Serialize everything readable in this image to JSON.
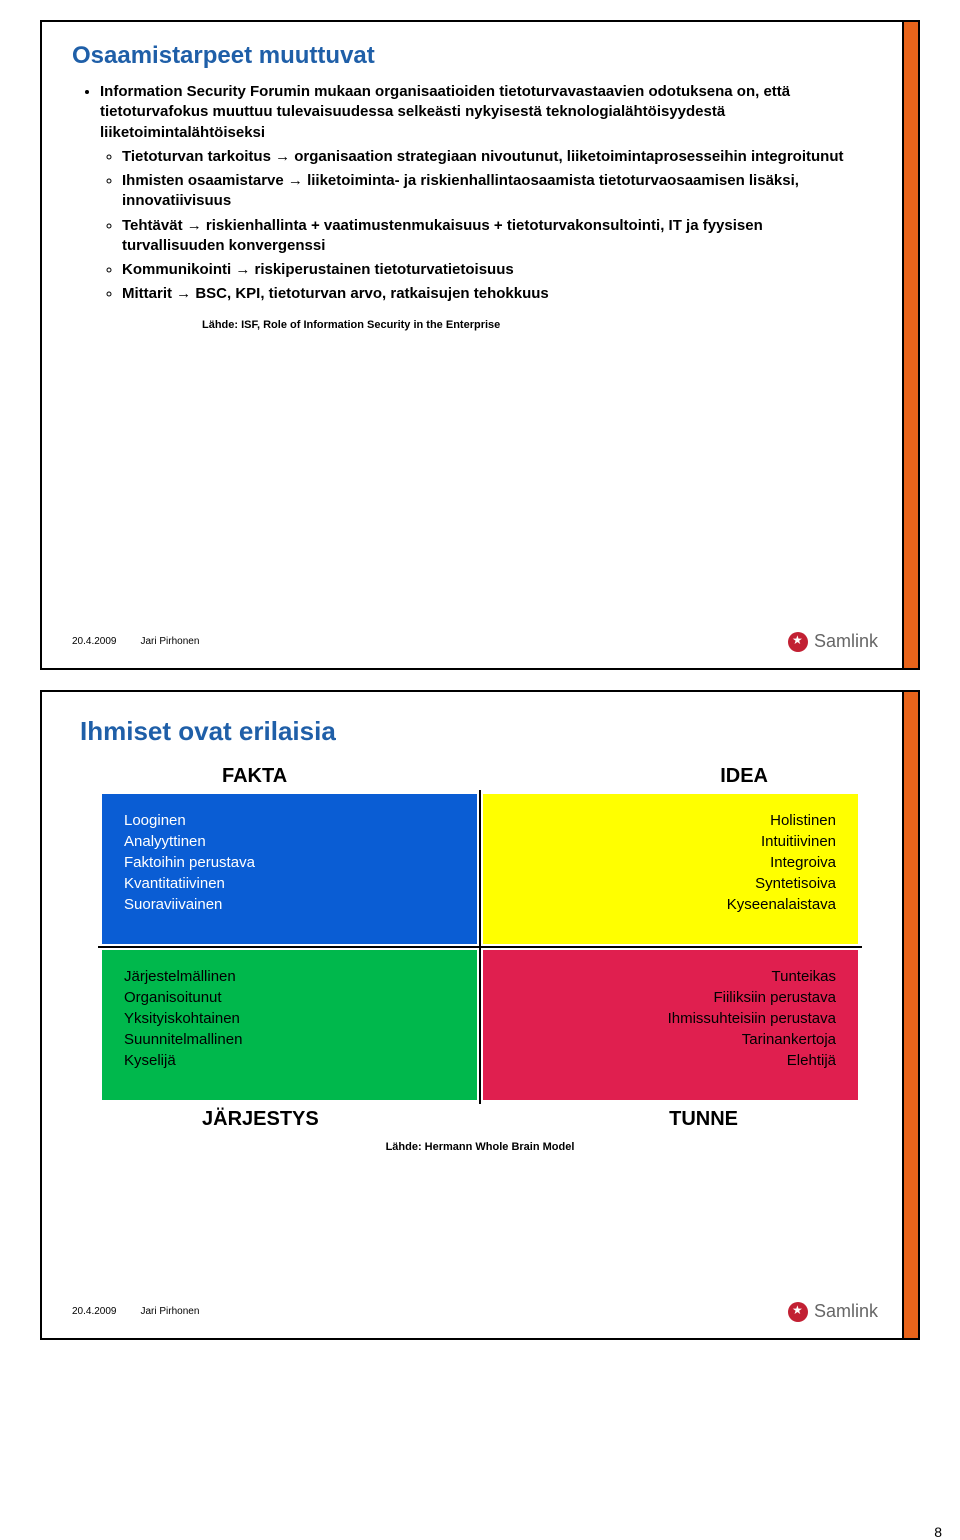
{
  "colors": {
    "title": "#1f5fa8",
    "accent_bar": "#e8641b",
    "text": "#000000",
    "samlink_red": "#c22033",
    "quad_blue": "#0a5dd4",
    "quad_yellow": "#ffff00",
    "quad_green": "#00b84c",
    "quad_red": "#e01f4f"
  },
  "slide1": {
    "title": "Osaamistarpeet muuttuvat",
    "bullets": {
      "b0": "Information Security Forumin mukaan organisaatioiden tietoturvavastaavien odotuksena on, että tietoturvafokus muuttuu tulevaisuudessa selkeästi nykyisestä teknologialähtöisyydestä liiketoimintalähtöiseksi",
      "s0": "Tietoturvan tarkoitus → organisaation strategiaan nivoutunut, liiketoimintaprosesseihin integroitunut",
      "s1": "Ihmisten osaamistarve → liiketoiminta- ja riskienhallintaosaamista tietoturvaosaamisen lisäksi, innovatiivisuus",
      "s2": "Tehtävät → riskienhallinta + vaatimustenmukaisuus + tietoturvakonsultointi, IT ja fyysisen turvallisuuden konvergenssi",
      "s3": "Kommunikointi → riskiperustainen tietoturvatietoisuus",
      "s4": "Mittarit → BSC, KPI, tietoturvan arvo, ratkaisujen tehokkuus"
    },
    "source": "Lähde: ISF, Role of Information Security in the Enterprise",
    "date": "20.4.2009",
    "author": "Jari Pirhonen",
    "brand": "Samlink"
  },
  "slide2": {
    "title": "Ihmiset ovat erilaisia",
    "headers": {
      "tl": "FAKTA",
      "tr": "IDEA",
      "bl": "JÄRJESTYS",
      "br": "TUNNE"
    },
    "cells": {
      "blue": [
        "Looginen",
        "Analyyttinen",
        "Faktoihin perustava",
        "Kvantitatiivinen",
        "Suoraviivainen"
      ],
      "yellow": [
        "Holistinen",
        "Intuitiivinen",
        "Integroiva",
        "Syntetisoiva",
        "Kyseenalaistava"
      ],
      "green": [
        "Järjestelmällinen",
        "Organisoitunut",
        "Yksityiskohtainen",
        "Suunnitelmallinen",
        "Kyselijä"
      ],
      "red": [
        "Tunteikas",
        "Fiiliksiin perustava",
        "Ihmissuhteisiin perustava",
        "Tarinankertoja",
        "Elehtijä"
      ]
    },
    "source": "Lähde: Hermann Whole Brain Model",
    "date": "20.4.2009",
    "author": "Jari Pirhonen",
    "brand": "Samlink"
  },
  "page_number": "8"
}
